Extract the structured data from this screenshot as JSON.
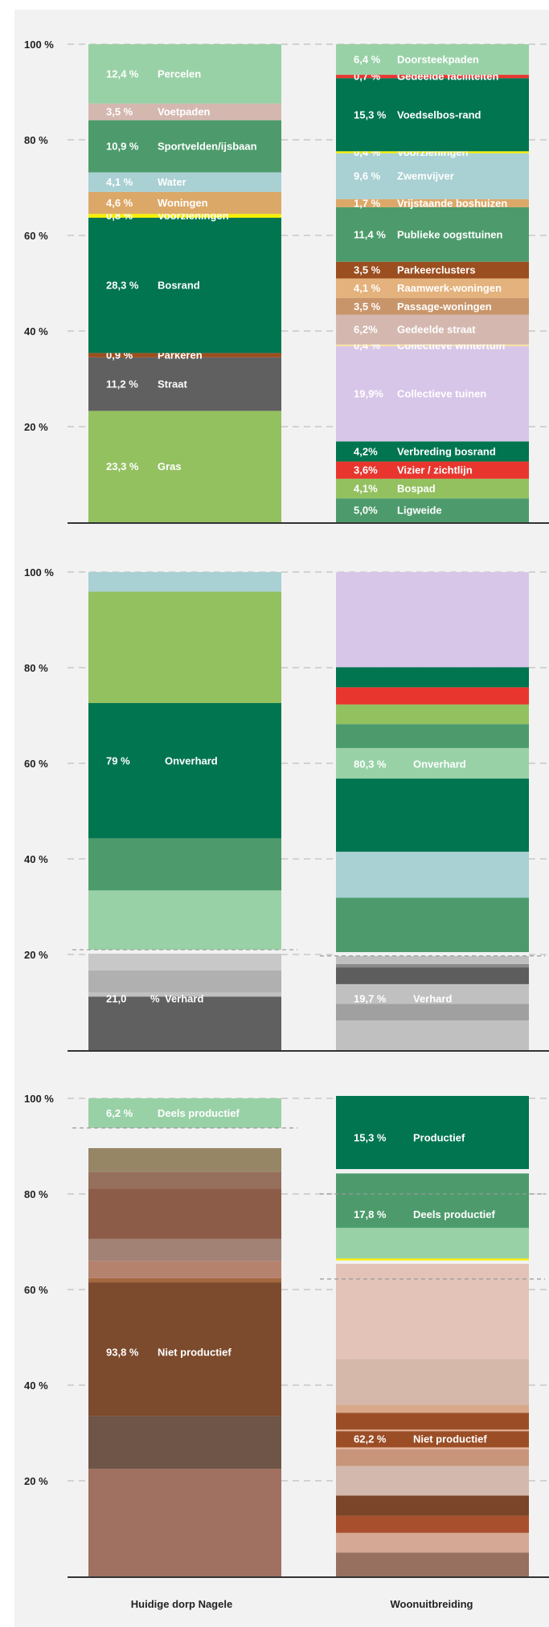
{
  "chart_data": [
    {
      "type": "stacked-bar",
      "ylim": [
        0,
        100
      ],
      "yticks": [
        "20 %",
        "40 %",
        "60 %",
        "80 %",
        "100 %"
      ],
      "grid": true,
      "columns": [
        {
          "segments": [
            {
              "pct": "23,3 %",
              "name": "Gras",
              "value": 23.3,
              "color": "#93c160",
              "label_color": "#ffffff"
            },
            {
              "pct": "11,2 %",
              "name": "Straat",
              "value": 11.2,
              "color": "#606060",
              "label_color": "#ffffff"
            },
            {
              "pct": "0,9 %",
              "name": "Parkeren",
              "value": 0.9,
              "color": "#9b4e1f",
              "label_color": "#ffffff"
            },
            {
              "pct": "28,3 %",
              "name": "Bosrand",
              "value": 28.3,
              "color": "#007550",
              "label_color": "#ffffff"
            },
            {
              "pct": "0,8 %",
              "name": "Voorzieningen",
              "value": 0.8,
              "color": "#f6f000",
              "label_color": "#ffffff"
            },
            {
              "pct": "4,6 %",
              "name": "Woningen",
              "value": 4.6,
              "color": "#dca868",
              "label_color": "#ffffff"
            },
            {
              "pct": "4,1 %",
              "name": "Water",
              "value": 4.1,
              "color": "#a9d0d3",
              "label_color": "#ffffff"
            },
            {
              "pct": "10,9 %",
              "name": "Sportvelden/ijsbaan",
              "value": 10.9,
              "color": "#4d9b6c",
              "label_color": "#ffffff"
            },
            {
              "pct": "3,5 %",
              "name": "Voetpaden",
              "value": 3.5,
              "color": "#d4b8b0",
              "label_color": "#ffffff"
            },
            {
              "pct": "12,4 %",
              "name": "Percelen",
              "value": 12.4,
              "color": "#99d1a7",
              "label_color": "#ffffff"
            }
          ]
        },
        {
          "segments": [
            {
              "pct": "5,0%",
              "name": "Ligweide",
              "value": 5.0,
              "color": "#4d9b6c",
              "label_color": "#ffffff"
            },
            {
              "pct": "4,1%",
              "name": "Bospad",
              "value": 4.1,
              "color": "#93c160",
              "label_color": "#ffffff"
            },
            {
              "pct": "3,6%",
              "name": "Vizier / zichtlijn",
              "value": 3.6,
              "color": "#e8362e",
              "label_color": "#ffffff"
            },
            {
              "pct": "4,2%",
              "name": "Verbreding bosrand",
              "value": 4.2,
              "color": "#007550",
              "label_color": "#ffffff"
            },
            {
              "pct": "19,9%",
              "name": "Collectieve tuinen",
              "value": 19.9,
              "color": "#d8c6e8",
              "label_color": "#ffffff"
            },
            {
              "pct": "0,4 %",
              "name": "Collectieve wintertuin",
              "value": 0.4,
              "color": "#f6dfa6",
              "label_color": "#ffffff"
            },
            {
              "pct": "6,2%",
              "name": "Gedeelde straat",
              "value": 6.2,
              "color": "#d4b8b0",
              "label_color": "#ffffff"
            },
            {
              "pct": "3,5 %",
              "name": "Passage-woningen",
              "value": 3.5,
              "color": "#c8956a",
              "label_color": "#ffffff"
            },
            {
              "pct": "4,1 %",
              "name": "Raamwerk-woningen",
              "value": 4.1,
              "color": "#e4b27c",
              "label_color": "#ffffff"
            },
            {
              "pct": "3,5 %",
              "name": "Parkeerclusters",
              "value": 3.5,
              "color": "#9b4e1f",
              "label_color": "#ffffff"
            },
            {
              "pct": "11,4 %",
              "name": "Publieke oogsttuinen",
              "value": 11.4,
              "color": "#4d9b6c",
              "label_color": "#ffffff"
            },
            {
              "pct": "1,7 %",
              "name": "Vrijstaande boshuizen",
              "value": 1.7,
              "color": "#dca868",
              "label_color": "#ffffff"
            },
            {
              "pct": "9,6 %",
              "name": "Zwemvijver",
              "value": 9.6,
              "color": "#a9d0d3",
              "label_color": "#ffffff"
            },
            {
              "pct": "0,4 %",
              "name": "Voorzieningen",
              "value": 0.4,
              "color": "#f6f000",
              "label_color": "#ffffff"
            },
            {
              "pct": "15,3 %",
              "name": "Voedselbos-rand",
              "value": 15.3,
              "color": "#007550",
              "label_color": "#ffffff"
            },
            {
              "pct": "0,7 %",
              "name": "Gedeelde faciliteiten",
              "value": 0.7,
              "color": "#e8362e",
              "label_color": "#ffffff"
            },
            {
              "pct": "6,4 %",
              "name": "Doorsteekpaden",
              "value": 6.4,
              "color": "#99d1a7",
              "label_color": "#ffffff"
            }
          ]
        }
      ]
    },
    {
      "type": "stacked-bar",
      "ylim": [
        0,
        100
      ],
      "yticks": [
        "20 %",
        "40 %",
        "60 %",
        "80 %",
        "100 %"
      ],
      "grid": true,
      "columns": [
        {
          "segments": [
            {
              "pct": "",
              "name": "",
              "value": 11.2,
              "color": "#606060"
            },
            {
              "pct": "",
              "name": "",
              "value": 0.9,
              "color": "#c0c0c0"
            },
            {
              "pct": "",
              "name": "",
              "value": 4.6,
              "color": "#b0b0b0"
            },
            {
              "pct": "",
              "name": "",
              "value": 3.5,
              "color": "#c8c8c8"
            },
            {
              "pct": "",
              "name": "",
              "value": 0.8,
              "color": "#f2f2f2"
            },
            {
              "pct": "",
              "name": "",
              "value": 12.4,
              "color": "#99d1a7"
            },
            {
              "pct": "",
              "name": "",
              "value": 10.9,
              "color": "#4d9b6c"
            },
            {
              "pct": "",
              "name": "",
              "value": 28.3,
              "color": "#007550"
            },
            {
              "pct": "",
              "name": "",
              "value": 23.3,
              "color": "#93c160"
            },
            {
              "pct": "",
              "name": "",
              "value": 4.1,
              "color": "#a9d0d3"
            }
          ],
          "groups": [
            {
              "pct": "21,0",
              "sep": "%",
              "name": "Verhard",
              "value": 21.0
            },
            {
              "pct": "79 %",
              "name": "Onverhard",
              "value": 79.0
            }
          ]
        },
        {
          "segments": [
            {
              "pct": "",
              "name": "",
              "value": 6.2,
              "color": "#c0c0c0"
            },
            {
              "pct": "",
              "name": "",
              "value": 3.5,
              "color": "#a0a0a0"
            },
            {
              "pct": "",
              "name": "",
              "value": 4.1,
              "color": "#c0c0c0"
            },
            {
              "pct": "",
              "name": "",
              "value": 3.5,
              "color": "#5d5d5d"
            },
            {
              "pct": "",
              "name": "",
              "value": 0.7,
              "color": "#8a8a8a"
            },
            {
              "pct": "",
              "name": "",
              "value": 1.7,
              "color": "#c0c0c0"
            },
            {
              "pct": "",
              "name": "",
              "value": 0.8,
              "color": "#f2f2f2"
            },
            {
              "pct": "",
              "name": "",
              "value": 11.4,
              "color": "#4d9b6c"
            },
            {
              "pct": "",
              "name": "",
              "value": 9.6,
              "color": "#a9d0d3"
            },
            {
              "pct": "",
              "name": "",
              "value": 15.3,
              "color": "#007550"
            },
            {
              "pct": "",
              "name": "",
              "value": 6.4,
              "color": "#99d1a7"
            },
            {
              "pct": "",
              "name": "",
              "value": 5.0,
              "color": "#4d9b6c"
            },
            {
              "pct": "",
              "name": "",
              "value": 4.1,
              "color": "#93c160"
            },
            {
              "pct": "",
              "name": "",
              "value": 3.6,
              "color": "#e8362e"
            },
            {
              "pct": "",
              "name": "",
              "value": 4.2,
              "color": "#007550"
            },
            {
              "pct": "",
              "name": "",
              "value": 19.9,
              "color": "#d8c6e8"
            }
          ],
          "groups": [
            {
              "pct": "19,7 %",
              "name": "Verhard",
              "value": 19.7
            },
            {
              "pct": "80,3 %",
              "name": "Onverhard",
              "value": 80.3
            }
          ]
        }
      ]
    },
    {
      "type": "stacked-bar",
      "ylim": [
        0,
        100
      ],
      "yticks": [
        "20 %",
        "40 %",
        "60 %",
        "80 %",
        "100 %"
      ],
      "grid": true,
      "columns": [
        {
          "segments": [
            {
              "pct": "",
              "name": "",
              "value": 22.5,
              "color": "#a07060"
            },
            {
              "pct": "",
              "name": "",
              "value": 11.0,
              "color": "#6e5548"
            },
            {
              "pct": "",
              "name": "",
              "value": 28.0,
              "color": "#7c4a2c"
            },
            {
              "pct": "",
              "name": "",
              "value": 0.9,
              "color": "#a4683f"
            },
            {
              "pct": "",
              "name": "",
              "value": 3.6,
              "color": "#b5826d"
            },
            {
              "pct": "",
              "name": "",
              "value": 4.6,
              "color": "#a18275"
            },
            {
              "pct": "",
              "name": "",
              "value": 10.5,
              "color": "#8c5c48"
            },
            {
              "pct": "",
              "name": "",
              "value": 3.5,
              "color": "#96705c"
            },
            {
              "pct": "",
              "name": "",
              "value": 5.0,
              "color": "#968666"
            },
            {
              "pct": "",
              "name": "",
              "value": 4.2,
              "color": "#f2f2f2"
            },
            {
              "pct": "",
              "name": "",
              "value": 6.2,
              "color": "#99d1a7"
            }
          ],
          "groups": [
            {
              "pct": "93,8 %",
              "name": "Niet productief",
              "value": 93.8
            },
            {
              "pct": "6,2 %",
              "name": "Deels productief",
              "value": 6.2
            }
          ]
        },
        {
          "segments": [
            {
              "pct": "",
              "name": "",
              "value": 5.0,
              "color": "#98705f"
            },
            {
              "pct": "",
              "name": "",
              "value": 4.1,
              "color": "#d4a894"
            },
            {
              "pct": "",
              "name": "",
              "value": 3.6,
              "color": "#a8502e"
            },
            {
              "pct": "",
              "name": "",
              "value": 4.2,
              "color": "#7a4528"
            },
            {
              "pct": "",
              "name": "",
              "value": 6.2,
              "color": "#d3b8ae"
            },
            {
              "pct": "",
              "name": "",
              "value": 3.5,
              "color": "#c8957a"
            },
            {
              "pct": "",
              "name": "",
              "value": 4.1,
              "color": "#e4b29a"
            },
            {
              "pct": "",
              "name": "",
              "value": 3.5,
              "color": "#9b4e26"
            },
            {
              "pct": "",
              "name": "",
              "value": 1.7,
              "color": "#d9a88a"
            },
            {
              "pct": "",
              "name": "",
              "value": 9.6,
              "color": "#d6b8aa"
            },
            {
              "pct": "",
              "name": "",
              "value": 19.9,
              "color": "#e3c3b8"
            },
            {
              "pct": "",
              "name": "",
              "value": 0.7,
              "color": "#f2f2f2"
            },
            {
              "pct": "",
              "name": "",
              "value": 0.4,
              "color": "#f6f000"
            },
            {
              "pct": "",
              "name": "",
              "value": 6.4,
              "color": "#99d1a7"
            },
            {
              "pct": "",
              "name": "",
              "value": 11.4,
              "color": "#4d9b6c"
            },
            {
              "pct": "",
              "name": "",
              "value": 0.9,
              "color": "#f2f2f2"
            },
            {
              "pct": "",
              "name": "",
              "value": 15.3,
              "color": "#007550"
            }
          ],
          "groups": [
            {
              "pct": "62,2 %",
              "name": "Niet productief",
              "value": 62.2,
              "label_bg": "#9b4e26"
            },
            {
              "pct": "17,8 %",
              "name": "Deels productief",
              "value": 17.8
            },
            {
              "pct": "15,3 %",
              "name": "Productief",
              "value": 15.3
            }
          ]
        }
      ]
    }
  ],
  "x_labels": [
    "Huidige dorp Nagele",
    "Woonuitbreiding"
  ],
  "colors": {
    "background": "#f2f2f2",
    "grid": "#c8c8c8",
    "axis": "#333333",
    "text": "#222222",
    "label": "#ffffff"
  }
}
